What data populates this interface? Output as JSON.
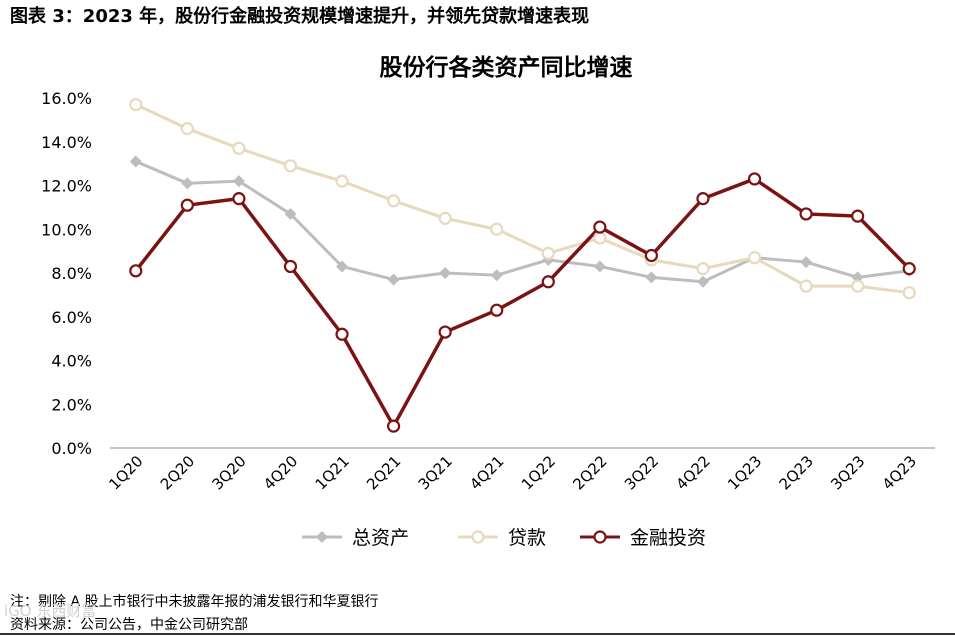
{
  "figure": {
    "title": "图表 3：2023 年，股份行金融投资规模增速提升，并领先贷款增速表现",
    "note": "注：剔除 A 股上市银行中未披露年报的浦发银行和华夏银行",
    "source": "资料来源：公司公告，中金公司研究部",
    "watermark": "iGO 东西财富"
  },
  "chart_data": {
    "type": "line",
    "title": "股份行各类资产同比增速",
    "xlabel": "",
    "ylabel": "",
    "categories": [
      "1Q20",
      "2Q20",
      "3Q20",
      "4Q20",
      "1Q21",
      "2Q21",
      "3Q21",
      "4Q21",
      "1Q22",
      "2Q22",
      "3Q22",
      "4Q22",
      "1Q23",
      "2Q23",
      "3Q23",
      "4Q23"
    ],
    "ylim": [
      0,
      16
    ],
    "yticks": [
      "0.0%",
      "2.0%",
      "4.0%",
      "6.0%",
      "8.0%",
      "10.0%",
      "12.0%",
      "14.0%",
      "16.0%"
    ],
    "grid": false,
    "legend_position": "bottom",
    "series": [
      {
        "name": "总资产",
        "color": "#bdbdbd",
        "marker": "diamond",
        "values": [
          13.1,
          12.1,
          12.2,
          10.7,
          8.3,
          7.7,
          8.0,
          7.9,
          8.6,
          8.3,
          7.8,
          7.6,
          8.7,
          8.5,
          7.8,
          8.1
        ]
      },
      {
        "name": "贷款",
        "color": "#e8d8bc",
        "marker": "circle-open",
        "values": [
          15.7,
          14.6,
          13.7,
          12.9,
          12.2,
          11.3,
          10.5,
          10.0,
          8.9,
          9.6,
          8.6,
          8.2,
          8.7,
          7.4,
          7.4,
          7.1
        ]
      },
      {
        "name": "金融投资",
        "color": "#7b1313",
        "marker": "circle-open",
        "values": [
          8.1,
          11.1,
          11.4,
          8.3,
          5.2,
          1.0,
          5.3,
          6.3,
          7.6,
          10.1,
          8.8,
          11.4,
          12.3,
          10.7,
          10.6,
          8.2
        ]
      }
    ]
  }
}
